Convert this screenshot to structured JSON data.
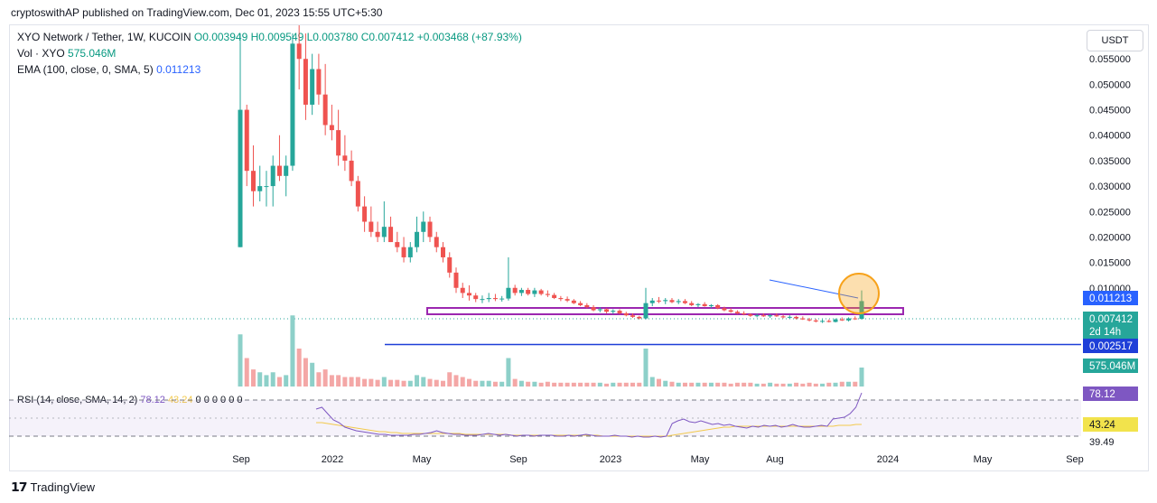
{
  "header": {
    "published": "cryptoswithAP published on TradingView.com, Dec 01, 2023 15:55 UTC+5:30"
  },
  "legend": {
    "symbol": "XYO Network / Tether, 1W, KUCOIN",
    "ohlc": "O0.003949 H0.009549 L0.003780 C0.007412 +0.003468 (+87.93%)",
    "vol_label": "Vol · XYO",
    "vol_value": "575.046M",
    "ema_label": "EMA (100, close, 0, SMA, 5)",
    "ema_value": "0.011213",
    "rsi_label": "RSI (14, close, SMA, 14, 2)",
    "rsi_value": "78.12",
    "rsi_sma": "43.24",
    "rsi_rest": "0  0  0  0  0  0"
  },
  "currency_button": "USDT",
  "footer": {
    "brand": "TradingView"
  },
  "colors": {
    "up": "#26a69a",
    "down": "#ef5350",
    "vol_up": "#8dd0c9",
    "vol_down": "#f4a7a6",
    "ema": "#2962ff",
    "box": "#9c27b0",
    "circle": "#f7a21b",
    "rsi": "#7e57c2",
    "rsi_sma": "#f2c94c"
  },
  "chart_data": {
    "type": "candlestick",
    "title": "XYO Network / Tether, 1W, KUCOIN",
    "y_ticks": [
      "0.055000",
      "0.050000",
      "0.045000",
      "0.040000",
      "0.035000",
      "0.030000",
      "0.025000",
      "0.020000",
      "0.015000",
      "0.010000"
    ],
    "x_ticks": [
      "Sep",
      "2022",
      "May",
      "Sep",
      "2023",
      "May",
      "Aug",
      "2024",
      "May",
      "Sep"
    ],
    "price_labels": {
      "ema": "0.011213",
      "last": "0.007412",
      "countdown": "2d 14h",
      "support": "0.002517",
      "volume": "575.046M"
    },
    "rsi_labels": {
      "rsi": "78.12",
      "sma": "43.24",
      "low_tick": "39.49"
    },
    "ylim": [
      0.0,
      0.057
    ],
    "candles": [
      [
        0.018,
        0.06,
        0.018,
        0.045
      ],
      [
        0.045,
        0.046,
        0.03,
        0.033
      ],
      [
        0.033,
        0.038,
        0.026,
        0.029
      ],
      [
        0.029,
        0.034,
        0.027,
        0.03
      ],
      [
        0.03,
        0.033,
        0.026,
        0.03
      ],
      [
        0.03,
        0.036,
        0.026,
        0.034
      ],
      [
        0.034,
        0.04,
        0.031,
        0.032
      ],
      [
        0.032,
        0.036,
        0.028,
        0.034
      ],
      [
        0.034,
        0.06,
        0.033,
        0.058
      ],
      [
        0.058,
        0.062,
        0.049,
        0.055
      ],
      [
        0.055,
        0.06,
        0.043,
        0.046
      ],
      [
        0.046,
        0.056,
        0.044,
        0.053
      ],
      [
        0.053,
        0.056,
        0.046,
        0.048
      ],
      [
        0.048,
        0.054,
        0.04,
        0.042
      ],
      [
        0.042,
        0.046,
        0.039,
        0.041
      ],
      [
        0.041,
        0.045,
        0.034,
        0.036
      ],
      [
        0.036,
        0.04,
        0.033,
        0.035
      ],
      [
        0.035,
        0.037,
        0.03,
        0.031
      ],
      [
        0.031,
        0.032,
        0.025,
        0.026
      ],
      [
        0.026,
        0.028,
        0.021,
        0.023
      ],
      [
        0.023,
        0.026,
        0.02,
        0.021
      ],
      [
        0.021,
        0.023,
        0.019,
        0.02
      ],
      [
        0.02,
        0.027,
        0.019,
        0.022
      ],
      [
        0.022,
        0.024,
        0.019,
        0.019
      ],
      [
        0.019,
        0.021,
        0.017,
        0.018
      ],
      [
        0.018,
        0.02,
        0.015,
        0.016
      ],
      [
        0.016,
        0.019,
        0.015,
        0.018
      ],
      [
        0.018,
        0.024,
        0.017,
        0.021
      ],
      [
        0.021,
        0.025,
        0.019,
        0.023
      ],
      [
        0.023,
        0.024,
        0.019,
        0.02
      ],
      [
        0.02,
        0.021,
        0.017,
        0.018
      ],
      [
        0.018,
        0.019,
        0.015,
        0.016
      ],
      [
        0.016,
        0.017,
        0.012,
        0.013
      ],
      [
        0.013,
        0.014,
        0.009,
        0.01
      ],
      [
        0.01,
        0.011,
        0.008,
        0.009
      ],
      [
        0.009,
        0.0105,
        0.0075,
        0.0085
      ],
      [
        0.0085,
        0.009,
        0.0072,
        0.0078
      ],
      [
        0.0078,
        0.0085,
        0.007,
        0.0078
      ],
      [
        0.0078,
        0.009,
        0.0072,
        0.008
      ],
      [
        0.008,
        0.0088,
        0.0074,
        0.0078
      ],
      [
        0.0078,
        0.0084,
        0.0073,
        0.0079
      ],
      [
        0.0079,
        0.016,
        0.0075,
        0.01
      ],
      [
        0.01,
        0.0106,
        0.0085,
        0.009
      ],
      [
        0.009,
        0.01,
        0.0084,
        0.0096
      ],
      [
        0.0096,
        0.01,
        0.0085,
        0.0088
      ],
      [
        0.0088,
        0.01,
        0.0082,
        0.0095
      ],
      [
        0.0095,
        0.0098,
        0.0085,
        0.0088
      ],
      [
        0.0088,
        0.0095,
        0.0082,
        0.0086
      ],
      [
        0.0086,
        0.009,
        0.0078,
        0.008
      ],
      [
        0.008,
        0.0084,
        0.0074,
        0.0078
      ],
      [
        0.0078,
        0.0083,
        0.0072,
        0.0075
      ],
      [
        0.0075,
        0.0078,
        0.0068,
        0.007
      ],
      [
        0.007,
        0.0074,
        0.0064,
        0.0066
      ],
      [
        0.0066,
        0.007,
        0.006,
        0.0062
      ],
      [
        0.0062,
        0.0066,
        0.0054,
        0.0056
      ],
      [
        0.0056,
        0.0062,
        0.0052,
        0.0058
      ],
      [
        0.0058,
        0.006,
        0.005,
        0.0053
      ],
      [
        0.0053,
        0.0058,
        0.0049,
        0.0055
      ],
      [
        0.0055,
        0.0058,
        0.0048,
        0.005
      ],
      [
        0.005,
        0.0053,
        0.0044,
        0.0046
      ],
      [
        0.0046,
        0.005,
        0.0041,
        0.0043
      ],
      [
        0.0043,
        0.0045,
        0.0038,
        0.004
      ],
      [
        0.004,
        0.01,
        0.0038,
        0.007
      ],
      [
        0.007,
        0.008,
        0.0064,
        0.0075
      ],
      [
        0.0075,
        0.0082,
        0.007,
        0.0074
      ],
      [
        0.0074,
        0.008,
        0.0068,
        0.0076
      ],
      [
        0.0076,
        0.008,
        0.007,
        0.0072
      ],
      [
        0.0072,
        0.0078,
        0.0068,
        0.0074
      ],
      [
        0.0074,
        0.0078,
        0.0068,
        0.007
      ],
      [
        0.007,
        0.0074,
        0.0064,
        0.0066
      ],
      [
        0.0066,
        0.007,
        0.0062,
        0.0068
      ],
      [
        0.0068,
        0.0072,
        0.0063,
        0.0064
      ],
      [
        0.0064,
        0.0068,
        0.006,
        0.0066
      ],
      [
        0.0066,
        0.0068,
        0.0058,
        0.006
      ],
      [
        0.006,
        0.0063,
        0.0054,
        0.0056
      ],
      [
        0.0056,
        0.006,
        0.0051,
        0.0053
      ],
      [
        0.0053,
        0.0056,
        0.0048,
        0.005
      ],
      [
        0.005,
        0.0054,
        0.0046,
        0.0048
      ],
      [
        0.0048,
        0.005,
        0.0043,
        0.0045
      ],
      [
        0.0045,
        0.0049,
        0.0042,
        0.0046
      ],
      [
        0.0046,
        0.005,
        0.0043,
        0.0044
      ],
      [
        0.0044,
        0.0048,
        0.0041,
        0.0046
      ],
      [
        0.0046,
        0.005,
        0.0043,
        0.0044
      ],
      [
        0.0044,
        0.0047,
        0.004,
        0.0042
      ],
      [
        0.0042,
        0.0046,
        0.0039,
        0.0043
      ],
      [
        0.0043,
        0.0045,
        0.0038,
        0.004
      ],
      [
        0.004,
        0.0044,
        0.0037,
        0.0038
      ],
      [
        0.0038,
        0.0041,
        0.0034,
        0.0036
      ],
      [
        0.0036,
        0.0039,
        0.0032,
        0.0034
      ],
      [
        0.0034,
        0.0038,
        0.0031,
        0.0035
      ],
      [
        0.0035,
        0.0038,
        0.0032,
        0.0033
      ],
      [
        0.0033,
        0.004,
        0.0032,
        0.0038
      ],
      [
        0.0038,
        0.0042,
        0.0035,
        0.0036
      ],
      [
        0.0036,
        0.0042,
        0.0034,
        0.004
      ],
      [
        0.004,
        0.0044,
        0.0037,
        0.0039
      ],
      [
        0.0039,
        0.0095,
        0.0038,
        0.0074
      ]
    ],
    "volumes": [
      0.55,
      0.3,
      0.18,
      0.15,
      0.12,
      0.15,
      0.1,
      0.12,
      0.75,
      0.4,
      0.3,
      0.25,
      0.15,
      0.18,
      0.12,
      0.12,
      0.1,
      0.1,
      0.1,
      0.08,
      0.08,
      0.07,
      0.1,
      0.07,
      0.07,
      0.06,
      0.06,
      0.12,
      0.1,
      0.08,
      0.07,
      0.06,
      0.15,
      0.12,
      0.1,
      0.08,
      0.06,
      0.06,
      0.06,
      0.05,
      0.05,
      0.3,
      0.08,
      0.06,
      0.05,
      0.05,
      0.04,
      0.05,
      0.04,
      0.04,
      0.04,
      0.04,
      0.04,
      0.04,
      0.04,
      0.04,
      0.03,
      0.04,
      0.04,
      0.04,
      0.04,
      0.04,
      0.4,
      0.1,
      0.08,
      0.06,
      0.05,
      0.04,
      0.04,
      0.04,
      0.04,
      0.04,
      0.04,
      0.04,
      0.04,
      0.03,
      0.04,
      0.04,
      0.04,
      0.03,
      0.03,
      0.04,
      0.03,
      0.03,
      0.03,
      0.04,
      0.03,
      0.04,
      0.03,
      0.03,
      0.04,
      0.04,
      0.05,
      0.05,
      0.05,
      0.2
    ],
    "rsi": [
      60,
      62,
      55,
      48,
      45,
      40,
      38,
      36,
      35,
      34,
      33,
      32,
      32,
      31,
      31,
      31,
      31,
      32,
      32,
      33,
      34,
      36,
      34,
      33,
      32,
      32,
      31,
      31,
      31,
      32,
      33,
      32,
      31,
      32,
      31,
      30,
      31,
      31,
      30,
      31,
      31,
      31,
      30,
      30,
      31,
      30,
      31,
      32,
      31,
      30,
      30,
      30,
      31,
      30,
      30,
      29,
      30,
      29,
      29,
      30,
      29,
      30,
      44,
      47,
      49,
      46,
      45,
      47,
      45,
      43,
      44,
      42,
      43,
      41,
      40,
      39,
      41,
      40,
      42,
      41,
      42,
      40,
      41,
      43,
      41,
      40,
      40,
      41,
      42,
      41,
      49,
      50,
      51,
      55,
      62,
      78
    ],
    "rsi_sma": [
      45,
      45,
      44,
      43,
      42,
      41,
      40,
      39,
      38,
      37,
      36,
      35,
      35,
      34,
      34,
      33,
      33,
      33,
      33,
      33,
      33,
      33,
      33,
      33,
      33,
      33,
      32,
      32,
      32,
      32,
      32,
      32,
      32,
      32,
      31,
      31,
      31,
      31,
      31,
      31,
      31,
      31,
      31,
      31,
      31,
      31,
      31,
      31,
      31,
      31,
      30,
      30,
      30,
      30,
      30,
      30,
      30,
      30,
      30,
      30,
      30,
      30,
      31,
      32,
      33,
      34,
      35,
      36,
      37,
      38,
      39,
      40,
      40,
      41,
      41,
      41,
      41,
      41,
      41,
      41,
      41,
      41,
      41,
      41,
      41,
      41,
      41,
      41,
      41,
      41,
      41,
      42,
      42,
      42,
      43,
      43
    ]
  }
}
